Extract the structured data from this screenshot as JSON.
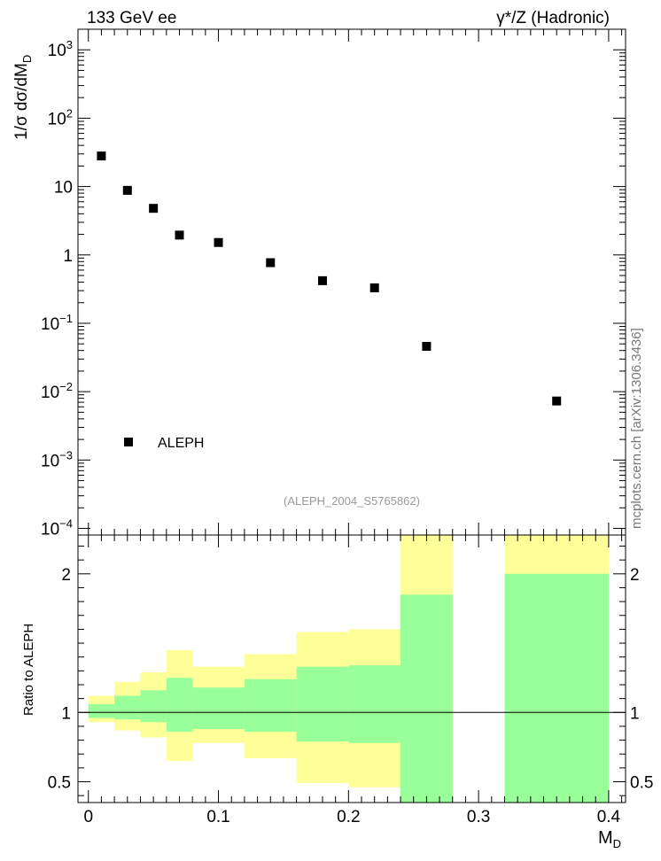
{
  "header": {
    "left_label": "133 GeV ee",
    "right_label": "γ*/Z (Hadronic)"
  },
  "watermark": "mcplots.cern.ch [arXiv:1306.3436]",
  "analysis_label": "(ALEPH_2004_S5765862)",
  "main_ylabel": "1/σ  dσ/dM_D",
  "ratio_ylabel": "Ratio to ALEPH",
  "xlabel": "M_D",
  "colors": {
    "band_outer": "#ffff99",
    "band_inner": "#99ff99",
    "marker": "#000000",
    "analysis_label": "#999999",
    "watermark": "#777777"
  },
  "chart_data": [
    {
      "type": "scatter",
      "yscale": "log",
      "xlim": [
        -0.008,
        0.413
      ],
      "ylim": [
        8e-05,
        2000
      ],
      "yticks": [
        {
          "value": 1000,
          "label": "10^3"
        },
        {
          "value": 100,
          "label": "10^2"
        },
        {
          "value": 10,
          "label": "10"
        },
        {
          "value": 1,
          "label": "1"
        },
        {
          "value": 0.1,
          "label": "10^-1"
        },
        {
          "value": 0.01,
          "label": "10^-2"
        },
        {
          "value": 0.001,
          "label": "10^-3"
        },
        {
          "value": 0.0001,
          "label": "10^-4"
        }
      ],
      "series": [
        {
          "name": "ALEPH",
          "x": [
            0.01,
            0.03,
            0.05,
            0.07,
            0.1,
            0.14,
            0.18,
            0.22,
            0.26,
            0.36
          ],
          "y": [
            28.0,
            8.8,
            4.8,
            1.95,
            1.52,
            0.77,
            0.42,
            0.33,
            0.046,
            0.0073
          ]
        }
      ],
      "legend": {
        "position": "bottom-left",
        "label": "ALEPH"
      }
    },
    {
      "type": "area",
      "title": "",
      "ylabel": "Ratio to ALEPH",
      "xlabel": "M_D",
      "xlim": [
        -0.008,
        0.413
      ],
      "ylim": [
        0.35,
        2.28
      ],
      "xticks": [
        {
          "value": 0,
          "label": "0"
        },
        {
          "value": 0.1,
          "label": "0.1"
        },
        {
          "value": 0.2,
          "label": "0.2"
        },
        {
          "value": 0.3,
          "label": "0.3"
        },
        {
          "value": 0.4,
          "label": "0.4"
        }
      ],
      "yticks": [
        {
          "value": 0.5,
          "label": "0.5"
        },
        {
          "value": 1,
          "label": "1"
        },
        {
          "value": 2,
          "label": "2"
        }
      ],
      "reference_line": 1,
      "bins": [
        {
          "x0": 0.0,
          "x1": 0.02,
          "inner": [
            0.96,
            1.06
          ],
          "outer": [
            0.93,
            1.12
          ]
        },
        {
          "x0": 0.02,
          "x1": 0.04,
          "inner": [
            0.95,
            1.12
          ],
          "outer": [
            0.87,
            1.22
          ]
        },
        {
          "x0": 0.04,
          "x1": 0.06,
          "inner": [
            0.93,
            1.16
          ],
          "outer": [
            0.82,
            1.29
          ]
        },
        {
          "x0": 0.06,
          "x1": 0.08,
          "inner": [
            0.86,
            1.25
          ],
          "outer": [
            0.65,
            1.45
          ]
        },
        {
          "x0": 0.08,
          "x1": 0.12,
          "inner": [
            0.88,
            1.18
          ],
          "outer": [
            0.78,
            1.33
          ]
        },
        {
          "x0": 0.12,
          "x1": 0.16,
          "inner": [
            0.86,
            1.24
          ],
          "outer": [
            0.67,
            1.42
          ]
        },
        {
          "x0": 0.16,
          "x1": 0.2,
          "inner": [
            0.79,
            1.33
          ],
          "outer": [
            0.49,
            1.58
          ]
        },
        {
          "x0": 0.2,
          "x1": 0.24,
          "inner": [
            0.78,
            1.34
          ],
          "outer": [
            0.46,
            1.6
          ]
        },
        {
          "x0": 0.24,
          "x1": 0.28,
          "inner": [
            0.35,
            1.85
          ],
          "outer": [
            0.35,
            2.28
          ]
        },
        {
          "x0": 0.32,
          "x1": 0.4,
          "inner": [
            0.35,
            2.0
          ],
          "outer": [
            0.35,
            2.28
          ]
        }
      ]
    }
  ]
}
